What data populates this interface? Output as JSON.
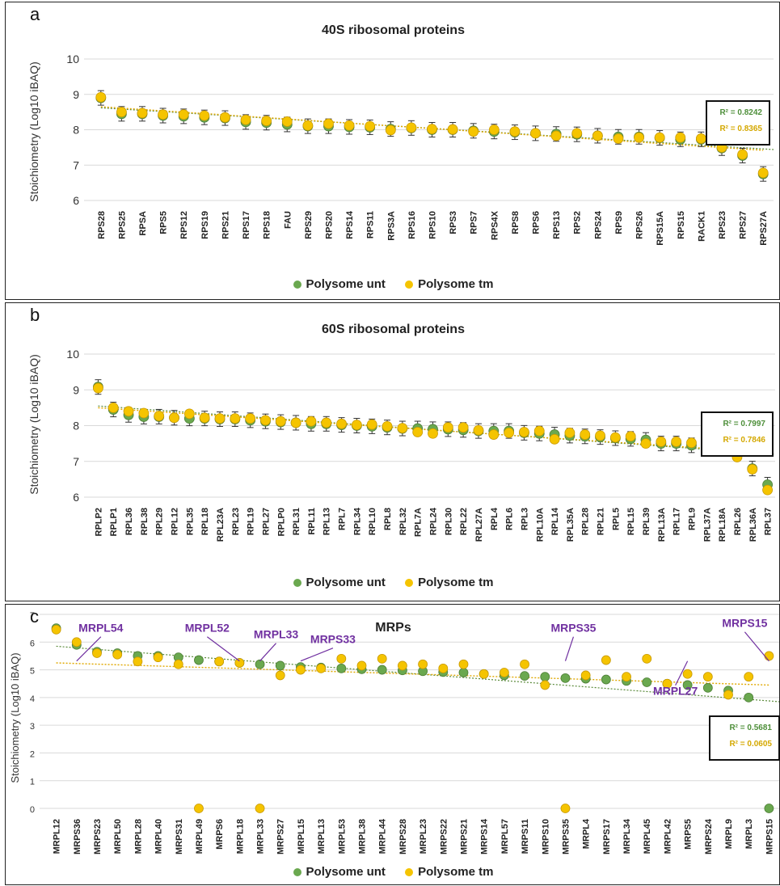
{
  "colors": {
    "unt": "#6aa84f",
    "tm": "#f5c400",
    "annot": "#7030a0",
    "r2_unt": "#4e8f3a",
    "r2_tm": "#d4a800"
  },
  "legend": {
    "unt": "Polysome unt",
    "tm": "Polysome tm"
  },
  "y_axis_label": "Stoichiometry (Log10 iBAQ)",
  "chart_data": [
    {
      "panel": "a",
      "type": "scatter",
      "title": "40S ribosomal proteins",
      "ylabel": "Stoichiometry (Log10 iBAQ)",
      "ylim": [
        6,
        10
      ],
      "yticks": [
        "6",
        "7",
        "8",
        "9",
        "10"
      ],
      "r2": [
        "R² = 0.8242",
        "R² = 0.8365"
      ],
      "categories": [
        "RPS28",
        "RPS25",
        "RPSA",
        "RPS5",
        "RPS12",
        "RPS19",
        "RPS21",
        "RPS17",
        "RPS18",
        "FAU",
        "RPS29",
        "RPS20",
        "RPS14",
        "RPS11",
        "RPS3A",
        "RPS16",
        "RPS10",
        "RPS3",
        "RPS7",
        "RPS4X",
        "RPS8",
        "RPS6",
        "RPS13",
        "RPS2",
        "RPS24",
        "RPS9",
        "RPS26",
        "RPS15A",
        "RPS15",
        "RACK1",
        "RPS23",
        "RPS27",
        "RPS27A"
      ],
      "series": [
        {
          "name": "Polysome unt",
          "values": [
            8.9,
            8.45,
            8.45,
            8.4,
            8.38,
            8.35,
            8.33,
            8.22,
            8.2,
            8.15,
            8.1,
            8.1,
            8.08,
            8.07,
            8.02,
            8.05,
            8.0,
            8.0,
            7.97,
            7.95,
            7.93,
            7.9,
            7.88,
            7.87,
            7.83,
            7.8,
            7.8,
            7.77,
            7.73,
            7.73,
            7.48,
            7.27,
            6.75
          ]
        },
        {
          "name": "Polysome tm",
          "values": [
            8.92,
            8.5,
            8.47,
            8.43,
            8.43,
            8.4,
            8.35,
            8.28,
            8.25,
            8.23,
            8.12,
            8.17,
            8.12,
            8.1,
            7.99,
            8.06,
            8.02,
            8.01,
            7.95,
            8.0,
            7.95,
            7.9,
            7.83,
            7.9,
            7.83,
            7.75,
            7.78,
            7.78,
            7.78,
            7.75,
            7.5,
            7.3,
            6.78
          ]
        }
      ],
      "trend_unt": [
        8.62,
        7.44
      ],
      "trend_tm": [
        8.65,
        7.42
      ]
    },
    {
      "panel": "b",
      "type": "scatter",
      "title": "60S ribosomal proteins",
      "ylabel": "Stoichiometry (Log10 iBAQ)",
      "ylim": [
        6,
        10
      ],
      "yticks": [
        "6",
        "7",
        "8",
        "9",
        "10"
      ],
      "r2": [
        "R² = 0.7997",
        "R² = 0.7846"
      ],
      "categories": [
        "RPLP2",
        "RPLP1",
        "RPL36",
        "RPL38",
        "RPL29",
        "RPL12",
        "RPL35",
        "RPL18",
        "RPL23A",
        "RPL23",
        "RPL19",
        "RPL27",
        "RPLP0",
        "RPL31",
        "RPL11",
        "RPL13",
        "RPL7",
        "RPL34",
        "RPL10",
        "RPL8",
        "RPL32",
        "RPL7A",
        "RPL24",
        "RPL30",
        "RPL22",
        "RPL27A",
        "RPL4",
        "RPL6",
        "RPL3",
        "RPL10A",
        "RPL14",
        "RPL35A",
        "RPL28",
        "RPL21",
        "RPL5",
        "RPL15",
        "RPL39",
        "RPL13A",
        "RPL17",
        "RPL9",
        "RPL37A",
        "RPL18A",
        "RPL26",
        "RPL36A",
        "RPL37"
      ],
      "series": [
        {
          "name": "Polysome unt",
          "values": [
            9.08,
            8.45,
            8.3,
            8.25,
            8.25,
            8.22,
            8.2,
            8.2,
            8.18,
            8.18,
            8.15,
            8.12,
            8.1,
            8.08,
            8.05,
            8.05,
            8.02,
            8.0,
            7.98,
            7.95,
            7.92,
            7.92,
            7.9,
            7.9,
            7.88,
            7.85,
            7.85,
            7.85,
            7.8,
            7.78,
            7.75,
            7.72,
            7.7,
            7.68,
            7.65,
            7.63,
            7.6,
            7.5,
            7.5,
            7.45,
            7.42,
            7.35,
            7.25,
            6.8,
            6.35
          ]
        },
        {
          "name": "Polysome tm",
          "values": [
            9.05,
            8.5,
            8.4,
            8.35,
            8.27,
            8.22,
            8.33,
            8.22,
            8.2,
            8.2,
            8.2,
            8.15,
            8.12,
            8.08,
            8.12,
            8.08,
            8.05,
            8.02,
            8.03,
            7.98,
            7.93,
            7.82,
            7.78,
            7.95,
            7.95,
            7.87,
            7.75,
            7.8,
            7.82,
            7.85,
            7.62,
            7.8,
            7.75,
            7.72,
            7.67,
            7.7,
            7.5,
            7.55,
            7.55,
            7.52,
            7.45,
            7.38,
            7.12,
            6.78,
            6.2
          ]
        }
      ],
      "trend_unt": [
        8.55,
        7.2
      ],
      "trend_tm": [
        8.5,
        7.25
      ]
    },
    {
      "panel": "c",
      "type": "scatter",
      "title": "MRPs",
      "ylabel": "Stoichiometry (Log10 iBAQ)",
      "ylim": [
        0,
        7
      ],
      "yticks": [
        "0",
        "1",
        "2",
        "3",
        "4",
        "5",
        "6",
        "7"
      ],
      "r2": [
        "R² = 0.5681",
        "R² = 0.0605"
      ],
      "categories": [
        "MRPL12",
        "MRPS36",
        "MRPS23",
        "MRPL50",
        "MRPL28",
        "MRPL40",
        "MRPS31",
        "MRPL49",
        "MRPS6",
        "MRPL18",
        "MRPL33",
        "MRPS27",
        "MRPL15",
        "MRPL13",
        "MRPL53",
        "MRPL38",
        "MRPL44",
        "MRPS28",
        "MRPL23",
        "MRPS22",
        "MRPS21",
        "MRPS14",
        "MRPL57",
        "MRPS11",
        "MRPS10",
        "MRPS35",
        "MRPL4",
        "MRPS17",
        "MRPL34",
        "MRPL45",
        "MRPL42",
        "MRPS5",
        "MRPS24",
        "MRPL9",
        "MRPL3",
        "MRPS15"
      ],
      "series": [
        {
          "name": "Polysome unt",
          "values": [
            6.5,
            5.9,
            5.65,
            5.6,
            5.5,
            5.5,
            5.45,
            5.35,
            5.3,
            5.25,
            5.2,
            5.15,
            5.1,
            5.08,
            5.05,
            5.02,
            5.0,
            4.98,
            4.95,
            4.92,
            4.9,
            4.85,
            4.8,
            4.78,
            4.75,
            4.7,
            4.68,
            4.65,
            4.6,
            4.55,
            4.5,
            4.45,
            4.35,
            4.25,
            4.0,
            0.0
          ]
        },
        {
          "name": "Polysome tm",
          "values": [
            6.45,
            6.0,
            5.6,
            5.55,
            5.3,
            5.45,
            5.2,
            0.0,
            5.3,
            5.25,
            0.0,
            4.8,
            5.0,
            5.05,
            5.4,
            5.15,
            5.4,
            5.15,
            5.2,
            5.05,
            5.2,
            4.85,
            4.9,
            5.2,
            4.45,
            0.0,
            4.8,
            5.35,
            4.75,
            5.4,
            4.5,
            4.85,
            4.75,
            4.1,
            4.75,
            5.5
          ]
        }
      ],
      "trend_unt": [
        5.85,
        3.85
      ],
      "trend_tm": [
        5.25,
        4.45
      ],
      "annotations": [
        {
          "text": "MRPL54",
          "category": "MRPS36"
        },
        {
          "text": "MRPL52",
          "category": "MRPL18"
        },
        {
          "text": "MRPL33",
          "category": "MRPL33"
        },
        {
          "text": "MRPS33",
          "category": "MRPL15"
        },
        {
          "text": "MRPS35",
          "category": "MRPS35"
        },
        {
          "text": "MRPL27",
          "category": "MRPS5"
        },
        {
          "text": "MRPS15",
          "category": "MRPS15"
        }
      ]
    }
  ]
}
